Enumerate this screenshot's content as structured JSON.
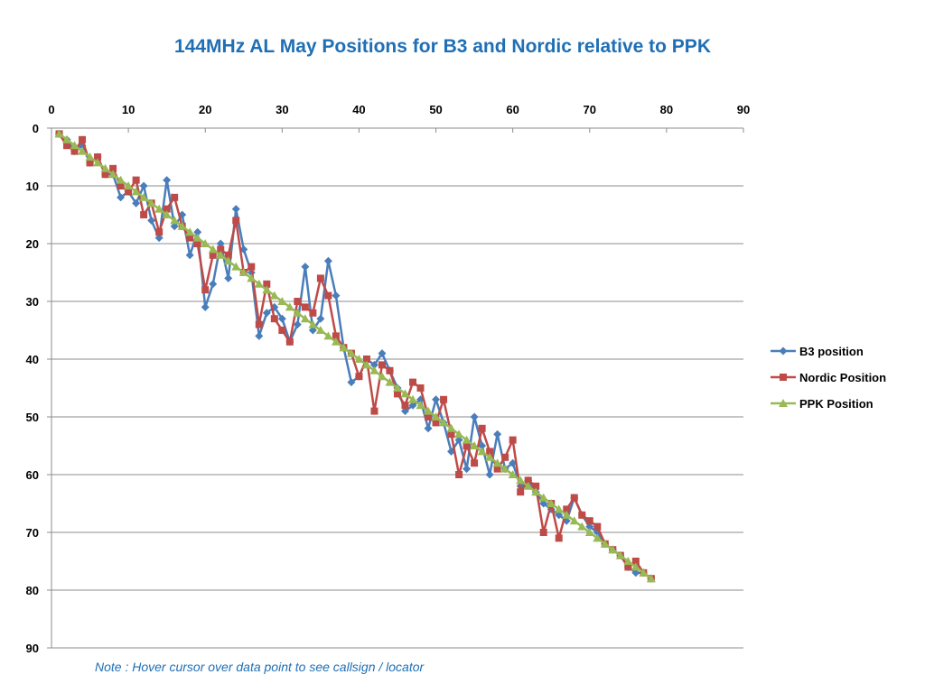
{
  "chart_data": {
    "type": "line",
    "title": "144MHz AL May Positions for B3 and Nordic relative to PPK",
    "note": "Note : Hover cursor over data point to see callsign / locator",
    "xlim": [
      0,
      90
    ],
    "ylim": [
      0,
      90
    ],
    "y_reversed": true,
    "x_ticks": [
      0,
      10,
      20,
      30,
      40,
      50,
      60,
      70,
      80,
      90
    ],
    "y_ticks": [
      0,
      10,
      20,
      30,
      40,
      50,
      60,
      70,
      80,
      90
    ],
    "x_axis_position": "top",
    "grid": "horizontal",
    "legend_position": "right",
    "x": [
      1,
      2,
      3,
      4,
      5,
      6,
      7,
      8,
      9,
      10,
      11,
      12,
      13,
      14,
      15,
      16,
      17,
      18,
      19,
      20,
      21,
      22,
      23,
      24,
      25,
      26,
      27,
      28,
      29,
      30,
      31,
      32,
      33,
      34,
      35,
      36,
      37,
      38,
      39,
      40,
      41,
      42,
      43,
      44,
      45,
      46,
      47,
      48,
      49,
      50,
      51,
      52,
      53,
      54,
      55,
      56,
      57,
      58,
      59,
      60,
      61,
      62,
      63,
      64,
      65,
      66,
      67,
      68,
      69,
      70,
      71,
      72,
      73,
      74,
      75,
      76,
      77,
      78
    ],
    "series": [
      {
        "name": "B3 position",
        "color": "#4a7ebb",
        "marker": "diamond",
        "values": [
          1,
          2,
          4,
          3,
          6,
          5,
          8,
          8,
          12,
          11,
          13,
          10,
          16,
          19,
          9,
          17,
          15,
          22,
          18,
          31,
          27,
          20,
          26,
          14,
          21,
          25,
          36,
          32,
          31,
          33,
          37,
          34,
          24,
          35,
          33,
          23,
          29,
          38,
          44,
          43,
          40,
          41,
          39,
          42,
          45,
          49,
          48,
          47,
          52,
          47,
          51,
          56,
          54,
          59,
          50,
          55,
          60,
          53,
          59,
          58,
          62,
          61,
          63,
          65,
          66,
          67,
          68,
          64,
          67,
          69,
          70,
          72,
          73,
          74,
          76,
          77,
          77,
          78
        ]
      },
      {
        "name": "Nordic Position",
        "color": "#be4b48",
        "marker": "square",
        "values": [
          1,
          3,
          4,
          2,
          6,
          5,
          8,
          7,
          10,
          11,
          9,
          15,
          13,
          18,
          14,
          12,
          17,
          19,
          20,
          28,
          22,
          21,
          22,
          16,
          25,
          24,
          34,
          27,
          33,
          35,
          37,
          30,
          31,
          32,
          26,
          29,
          36,
          38,
          39,
          43,
          40,
          49,
          41,
          42,
          46,
          48,
          44,
          45,
          50,
          51,
          47,
          53,
          60,
          55,
          58,
          52,
          56,
          59,
          57,
          54,
          63,
          61,
          62,
          70,
          65,
          71,
          66,
          64,
          67,
          68,
          69,
          72,
          73,
          74,
          76,
          75,
          77,
          78
        ]
      },
      {
        "name": "PPK Position",
        "color": "#98b954",
        "marker": "triangle",
        "values": [
          1,
          2,
          3,
          4,
          5,
          6,
          7,
          8,
          9,
          10,
          11,
          12,
          13,
          14,
          15,
          16,
          17,
          18,
          19,
          20,
          21,
          22,
          23,
          24,
          25,
          26,
          27,
          28,
          29,
          30,
          31,
          32,
          33,
          34,
          35,
          36,
          37,
          38,
          39,
          40,
          41,
          42,
          43,
          44,
          45,
          46,
          47,
          48,
          49,
          50,
          51,
          52,
          53,
          54,
          55,
          56,
          57,
          58,
          59,
          60,
          61,
          62,
          63,
          64,
          65,
          66,
          67,
          68,
          69,
          70,
          71,
          72,
          73,
          74,
          75,
          76,
          77,
          78
        ]
      }
    ]
  }
}
